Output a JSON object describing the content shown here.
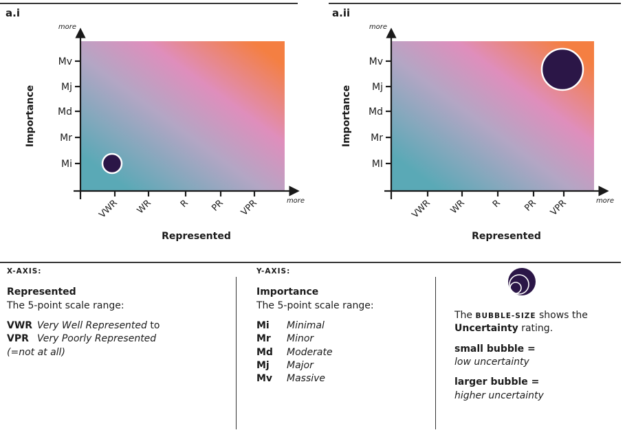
{
  "colors": {
    "teal": "#5aa9b6",
    "mid_lavender": "#b3a6c4",
    "pink": "#df8ebc",
    "orange": "#f47f42",
    "bubble": "#2b1647",
    "axis": "#1a1a1a"
  },
  "chart_data": [
    {
      "type": "scatter",
      "panel_label": "a.i",
      "xlabel": "Represented",
      "ylabel": "Importance",
      "x_more_label": "more",
      "y_more_label": "more",
      "x_categories": [
        "VWR",
        "WR",
        "R",
        "PR",
        "VPR"
      ],
      "y_categories": [
        "Mi",
        "Mr",
        "Md",
        "Mj",
        "Mv"
      ],
      "grid": false,
      "background": "diagonal gradient teal to orange",
      "points": [
        {
          "x": "VWR",
          "y": "Mi",
          "size": "small"
        }
      ]
    },
    {
      "type": "scatter",
      "panel_label": "a.ii",
      "xlabel": "Represented",
      "ylabel": "Importance",
      "x_more_label": "more",
      "y_more_label": "more",
      "x_categories": [
        "VWR",
        "WR",
        "R",
        "PR",
        "VPR"
      ],
      "y_categories": [
        "MI",
        "Mr",
        "Md",
        "Mj",
        "Mv"
      ],
      "grid": false,
      "background": "diagonal gradient teal to orange",
      "points": [
        {
          "x": "VPR",
          "y": "Mv",
          "size": "large"
        }
      ]
    }
  ],
  "legend": {
    "x_axis": {
      "header": "X-AXIS:",
      "term": "Represented",
      "desc": "The 5-point scale range:",
      "items": [
        {
          "abbr": "VWR",
          "text": "Very Well Represented",
          "suffix": " to"
        },
        {
          "abbr": "VPR",
          "text": "Very Poorly Represented",
          "suffix": ""
        }
      ],
      "note": "(=not at all)"
    },
    "y_axis": {
      "header": "Y-AXIS:",
      "term": "Importance",
      "desc": "The 5-point scale range:",
      "items": [
        {
          "abbr": "Mi",
          "text": "Minimal"
        },
        {
          "abbr": "Mr",
          "text": "Minor"
        },
        {
          "abbr": "Md",
          "text": "Moderate"
        },
        {
          "abbr": "Mj",
          "text": "Major"
        },
        {
          "abbr": "Mv",
          "text": "Massive"
        }
      ]
    },
    "bubble": {
      "pre": "The ",
      "keyword": "BUBBLE-SIZE",
      "post": " shows the",
      "term": "Uncertainty",
      "post2": " rating.",
      "small_label": "small bubble =",
      "small_desc": "low uncertainty",
      "large_label": "larger bubble =",
      "large_desc": "higher uncertainty"
    }
  }
}
